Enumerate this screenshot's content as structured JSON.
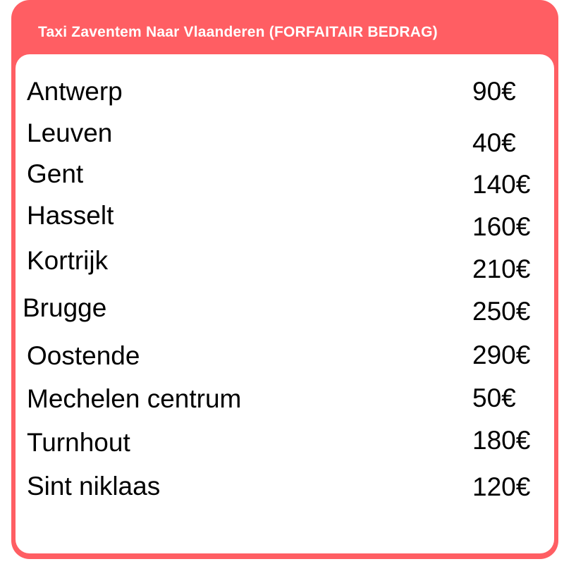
{
  "title": "Taxi Zaventem Naar Vlaanderen (FORFAITAIR BEDRAG)",
  "accent_color": "#ff5e63",
  "rows": [
    {
      "city": "Antwerp",
      "price": "90€"
    },
    {
      "city": "Leuven",
      "price": "40€"
    },
    {
      "city": "Gent",
      "price": "140€"
    },
    {
      "city": "Hasselt",
      "price": "160€"
    },
    {
      "city": "Kortrijk",
      "price": "210€"
    },
    {
      "city": "Brugge",
      "price": "250€"
    },
    {
      "city": "Oostende",
      "price": "290€"
    },
    {
      "city": "Mechelen centrum",
      "price": "50€"
    },
    {
      "city": "Turnhout",
      "price": "180€"
    },
    {
      "city": "Sint niklaas",
      "price": "120€"
    }
  ]
}
